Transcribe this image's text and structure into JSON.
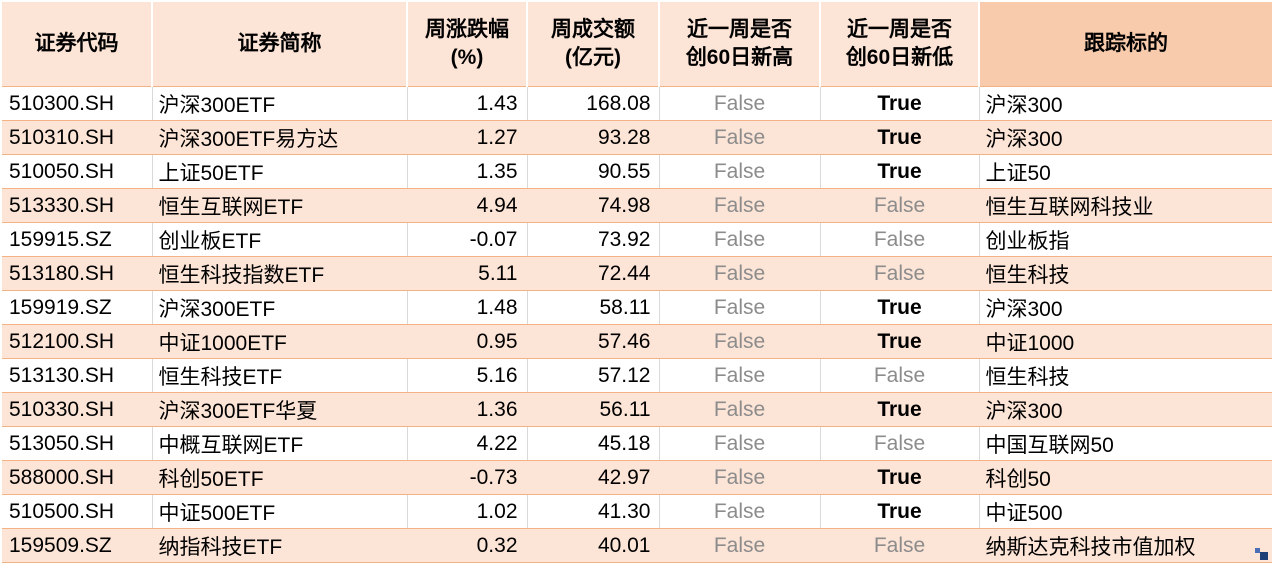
{
  "colors": {
    "header_bg": "#fce4d6",
    "header_accent_bg": "#f8cbad",
    "row_alt_bg": "#fce4d6",
    "row_bg": "#ffffff",
    "grid_line_orange": "#f4b183",
    "grid_line_gray": "#d9d9d9",
    "false_text": "#8c8c8c",
    "true_text": "#000000",
    "corner_mark_blue": "#1f3f77"
  },
  "chart_data": {
    "type": "table",
    "title": "",
    "columns": [
      {
        "key": "code",
        "label": "证券代码"
      },
      {
        "key": "name",
        "label": "证券简称"
      },
      {
        "key": "pct",
        "label": "周涨跌幅\n(%)"
      },
      {
        "key": "turnover",
        "label": "周成交额\n(亿元)"
      },
      {
        "key": "high",
        "label": "近一周是否\n创60日新高"
      },
      {
        "key": "low",
        "label": "近一周是否\n创60日新低"
      },
      {
        "key": "target",
        "label": "跟踪标的"
      }
    ],
    "rows": [
      {
        "code": "510300.SH",
        "name": "沪深300ETF",
        "pct": "1.43",
        "turnover": "168.08",
        "high": "False",
        "low": "True",
        "target": "沪深300"
      },
      {
        "code": "510310.SH",
        "name": "沪深300ETF易方达",
        "pct": "1.27",
        "turnover": "93.28",
        "high": "False",
        "low": "True",
        "target": "沪深300"
      },
      {
        "code": "510050.SH",
        "name": "上证50ETF",
        "pct": "1.35",
        "turnover": "90.55",
        "high": "False",
        "low": "True",
        "target": "上证50"
      },
      {
        "code": "513330.SH",
        "name": "恒生互联网ETF",
        "pct": "4.94",
        "turnover": "74.98",
        "high": "False",
        "low": "False",
        "target": "恒生互联网科技业"
      },
      {
        "code": "159915.SZ",
        "name": "创业板ETF",
        "pct": "-0.07",
        "turnover": "73.92",
        "high": "False",
        "low": "False",
        "target": "创业板指"
      },
      {
        "code": "513180.SH",
        "name": "恒生科技指数ETF",
        "pct": "5.11",
        "turnover": "72.44",
        "high": "False",
        "low": "False",
        "target": "恒生科技"
      },
      {
        "code": "159919.SZ",
        "name": "沪深300ETF",
        "pct": "1.48",
        "turnover": "58.11",
        "high": "False",
        "low": "True",
        "target": "沪深300"
      },
      {
        "code": "512100.SH",
        "name": "中证1000ETF",
        "pct": "0.95",
        "turnover": "57.46",
        "high": "False",
        "low": "True",
        "target": "中证1000"
      },
      {
        "code": "513130.SH",
        "name": "恒生科技ETF",
        "pct": "5.16",
        "turnover": "57.12",
        "high": "False",
        "low": "False",
        "target": "恒生科技"
      },
      {
        "code": "510330.SH",
        "name": "沪深300ETF华夏",
        "pct": "1.36",
        "turnover": "56.11",
        "high": "False",
        "low": "True",
        "target": "沪深300"
      },
      {
        "code": "513050.SH",
        "name": "中概互联网ETF",
        "pct": "4.22",
        "turnover": "45.18",
        "high": "False",
        "low": "False",
        "target": "中国互联网50"
      },
      {
        "code": "588000.SH",
        "name": "科创50ETF",
        "pct": "-0.73",
        "turnover": "42.97",
        "high": "False",
        "low": "True",
        "target": "科创50"
      },
      {
        "code": "510500.SH",
        "name": "中证500ETF",
        "pct": "1.02",
        "turnover": "41.30",
        "high": "False",
        "low": "True",
        "target": "中证500"
      },
      {
        "code": "159509.SZ",
        "name": "纳指科技ETF",
        "pct": "0.32",
        "turnover": "40.01",
        "high": "False",
        "low": "False",
        "target": "纳斯达克科技市值加权"
      }
    ]
  }
}
